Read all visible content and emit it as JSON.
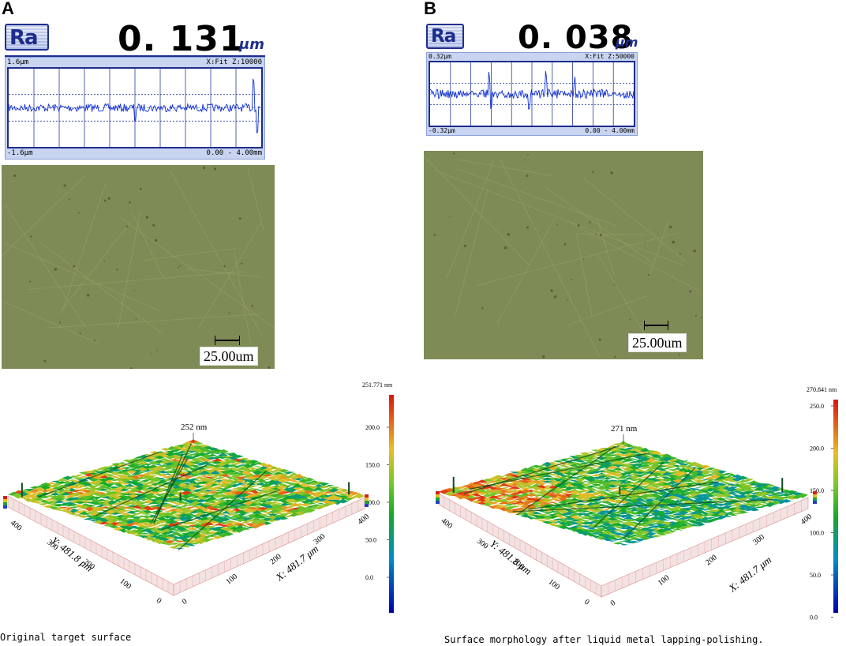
{
  "panel_a": {
    "letter": "A",
    "ra_label": "Ra",
    "ra_value": "0. 131",
    "ra_unit": "μm",
    "profile": {
      "top_left": "1.6μm",
      "top_right": "X:Fit Z:10000",
      "bottom_left": "-1.6μm",
      "bottom_right": "0.00 - 4.00mm"
    },
    "scale_bar": "25.00um",
    "peak_label": "252 nm",
    "colorbar_max": "251.771 nm",
    "colorbar_ticks": [
      "200.0",
      "150.0",
      "100.0",
      "50.0",
      "0.0"
    ],
    "y_axis": "Y: 481.8 μm",
    "x_axis": "X: 481.7 μm",
    "y_ticks": [
      "400",
      "300",
      "200",
      "100",
      "0"
    ],
    "x_ticks": [
      "0",
      "100",
      "200",
      "300",
      "400"
    ],
    "caption": "Original target surface"
  },
  "panel_b": {
    "letter": "B",
    "ra_label": "Ra",
    "ra_value": "0. 038",
    "ra_unit": "μm",
    "profile": {
      "top_left": "0.32μm",
      "top_right": "X:Fit Z:50000",
      "bottom_left": "-0.32μm",
      "bottom_right": "0.00 - 4.00mm"
    },
    "scale_bar": "25.00um",
    "peak_label": "271 nm",
    "colorbar_max": "270.841 nm",
    "colorbar_ticks": [
      "250.0",
      "200.0",
      "150.0",
      "100.0",
      "50.0",
      "0.0"
    ],
    "y_axis": "Y: 481.8 μm",
    "x_axis": "X: 481.7 μm",
    "y_ticks": [
      "400",
      "300",
      "200",
      "100",
      "0"
    ],
    "x_ticks": [
      "0",
      "100",
      "200",
      "300",
      "400"
    ],
    "caption": "Surface morphology after liquid metal lapping-polishing."
  },
  "colors": {
    "ra_blue": "#1d2d8c",
    "profile_bg": "#c8d4f0",
    "micrograph": "#7e8a55"
  }
}
